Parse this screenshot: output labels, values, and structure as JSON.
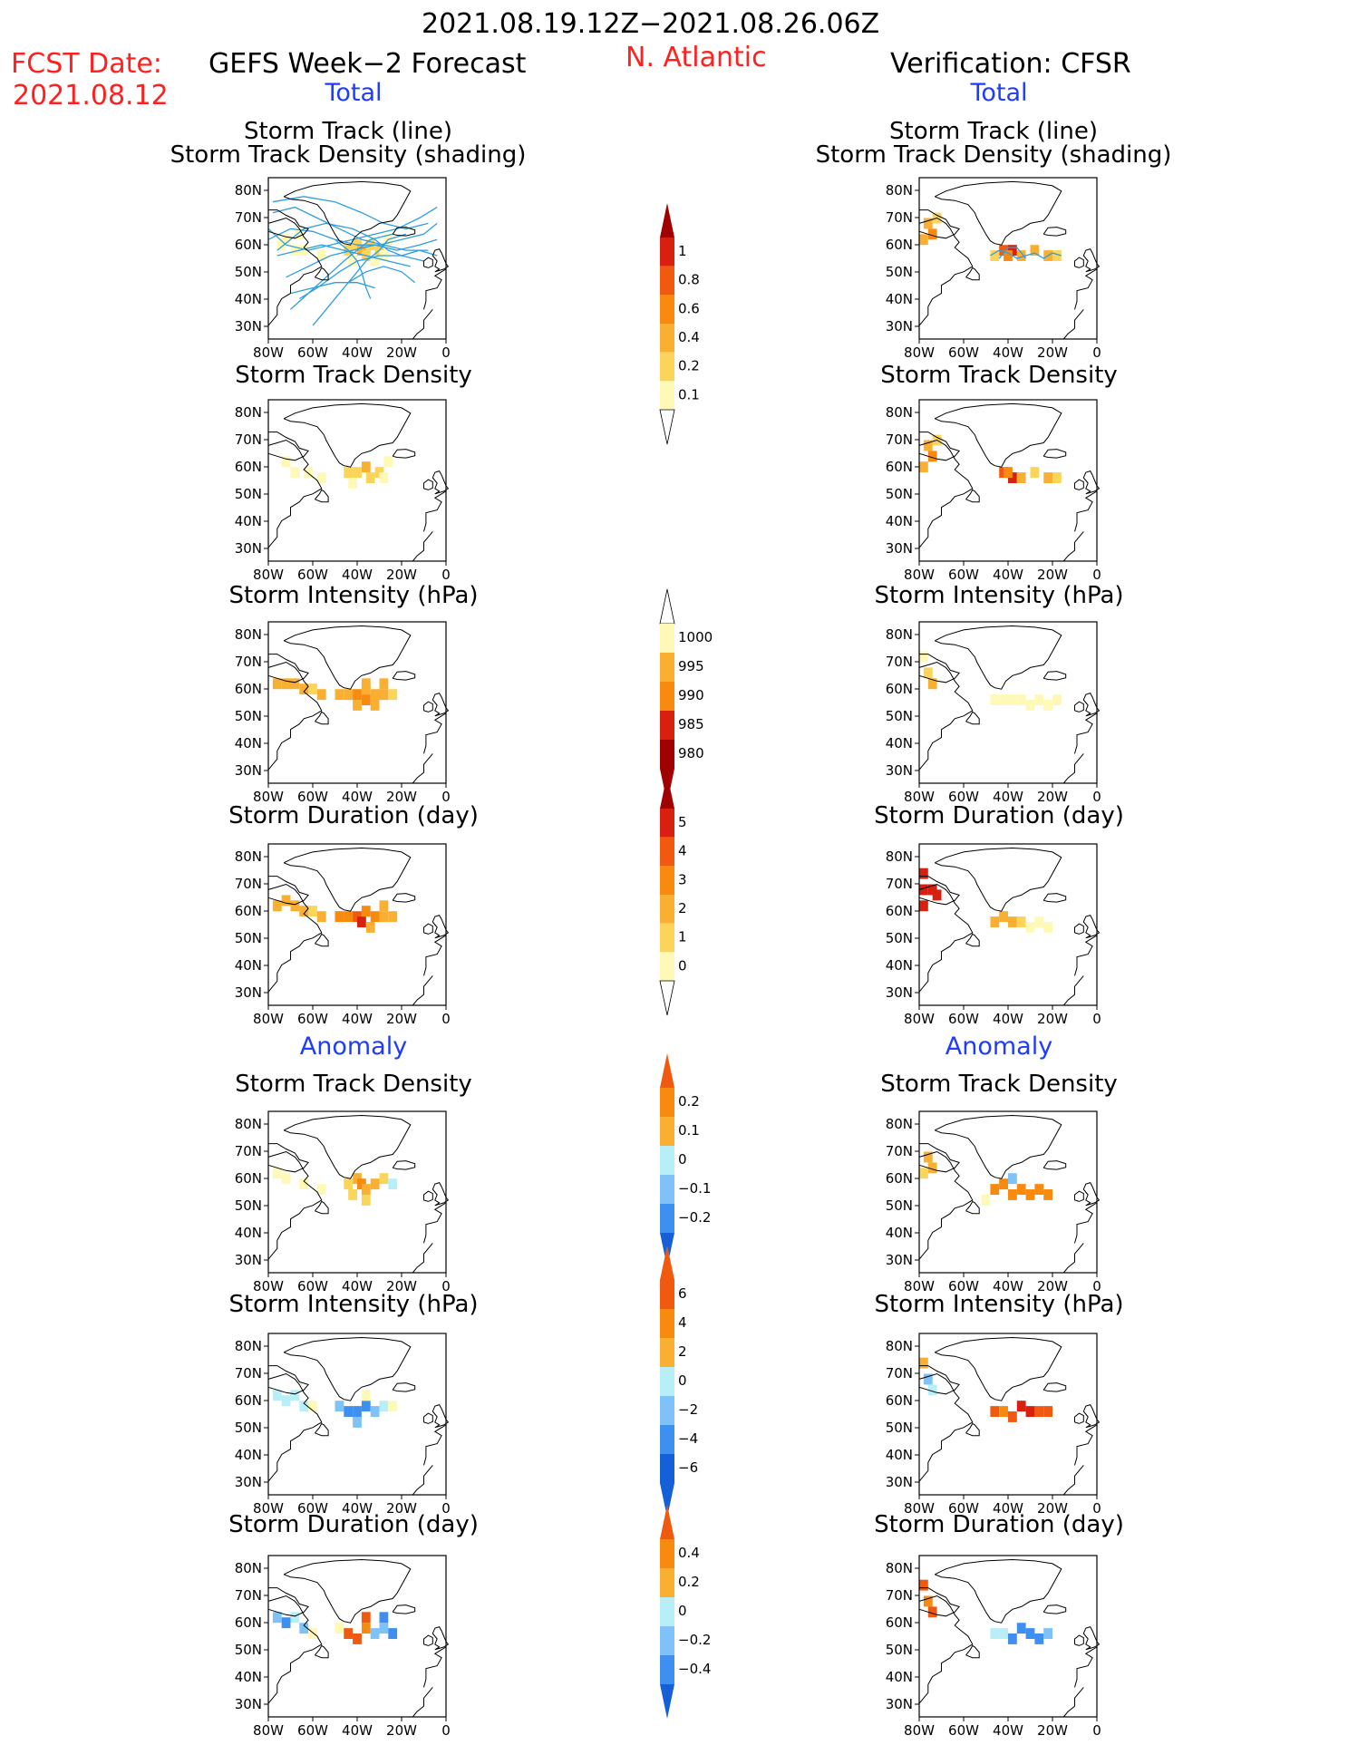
{
  "header": {
    "period": "2021.08.19.12Z−2021.08.26.06Z",
    "fcst_label": "FCST Date:",
    "fcst_date": "2021.08.12",
    "model": "GEFS Week−2 Forecast",
    "region": "N. Atlantic",
    "verification": "Verification: CFSR",
    "total_left": "Total",
    "total_right": "Total",
    "anomaly_left": "Anomaly",
    "anomaly_right": "Anomaly"
  },
  "axes": {
    "lat_ticks": [
      "80N",
      "70N",
      "60N",
      "50N",
      "40N",
      "30N"
    ],
    "lon_ticks": [
      "80W",
      "60W",
      "40W",
      "20W",
      "0"
    ]
  },
  "colors": {
    "pos": [
      "#fff9b8",
      "#fbd45a",
      "#f9b032",
      "#f88a10",
      "#f05a10",
      "#d82010",
      "#a00000"
    ],
    "neg": [
      "#b8eef8",
      "#7ec2f8",
      "#3f8ff0",
      "#1560d8"
    ],
    "track": "#2f9ee0"
  },
  "chart_data": [
    {
      "type": "heatmap",
      "column": "forecast",
      "title": "Storm Track (line)\nStorm Track Density (shading)",
      "title_lines": [
        "Storm Track (line)",
        "Storm Track Density (shading)"
      ],
      "field": "total_density",
      "cells": [
        [
          -72,
          62,
          1
        ],
        [
          -68,
          58,
          1
        ],
        [
          -74,
          60,
          1
        ],
        [
          -64,
          58,
          1
        ],
        [
          -66,
          64,
          1
        ],
        [
          -56,
          56,
          1
        ],
        [
          -44,
          58,
          2
        ],
        [
          -40,
          60,
          2
        ],
        [
          -38,
          58,
          3
        ],
        [
          -36,
          56,
          2
        ],
        [
          -34,
          60,
          2
        ],
        [
          -30,
          58,
          2
        ],
        [
          -32,
          54,
          1
        ],
        [
          -28,
          56,
          1
        ],
        [
          -42,
          54,
          1
        ],
        [
          -26,
          62,
          1
        ]
      ],
      "tracks": true
    },
    {
      "type": "heatmap",
      "column": "verification",
      "title": "Storm Track (line)\nStorm Track Density (shading)",
      "title_lines": [
        "Storm Track (line)",
        "Storm Track Density (shading)"
      ],
      "field": "total_density",
      "cells": [
        [
          -76,
          68,
          3
        ],
        [
          -74,
          64,
          4
        ],
        [
          -78,
          62,
          3
        ],
        [
          -72,
          70,
          2
        ],
        [
          -42,
          58,
          5
        ],
        [
          -38,
          58,
          6
        ],
        [
          -40,
          56,
          4
        ],
        [
          -34,
          56,
          3
        ],
        [
          -28,
          58,
          3
        ],
        [
          -22,
          56,
          3
        ],
        [
          -18,
          56,
          2
        ],
        [
          -46,
          56,
          2
        ]
      ],
      "tracks": true
    },
    {
      "type": "heatmap",
      "column": "forecast",
      "title": "Storm Track Density",
      "title_lines": [
        "Storm Track Density"
      ],
      "field": "total_density",
      "cells": [
        [
          -72,
          62,
          1
        ],
        [
          -68,
          58,
          1
        ],
        [
          -62,
          58,
          1
        ],
        [
          -56,
          56,
          1
        ],
        [
          -44,
          58,
          2
        ],
        [
          -40,
          58,
          2
        ],
        [
          -36,
          60,
          3
        ],
        [
          -34,
          56,
          2
        ],
        [
          -30,
          58,
          2
        ],
        [
          -28,
          56,
          1
        ],
        [
          -42,
          54,
          1
        ],
        [
          -26,
          62,
          1
        ]
      ]
    },
    {
      "type": "heatmap",
      "column": "verification",
      "title": "Storm Track Density",
      "title_lines": [
        "Storm Track Density"
      ],
      "field": "total_density",
      "cells": [
        [
          -76,
          68,
          3
        ],
        [
          -74,
          64,
          4
        ],
        [
          -78,
          60,
          3
        ],
        [
          -72,
          70,
          2
        ],
        [
          -42,
          58,
          5
        ],
        [
          -38,
          56,
          6
        ],
        [
          -40,
          58,
          4
        ],
        [
          -34,
          56,
          3
        ],
        [
          -28,
          58,
          2
        ],
        [
          -22,
          56,
          3
        ],
        [
          -18,
          56,
          2
        ]
      ]
    },
    {
      "type": "heatmap",
      "column": "forecast",
      "title": "Storm Intensity (hPa)",
      "title_lines": [
        "Storm Intensity (hPa)"
      ],
      "field": "total_intensity",
      "cells": [
        [
          -76,
          62,
          3
        ],
        [
          -72,
          62,
          3
        ],
        [
          -68,
          62,
          3
        ],
        [
          -64,
          60,
          3
        ],
        [
          -60,
          60,
          2
        ],
        [
          -56,
          58,
          3
        ],
        [
          -48,
          58,
          3
        ],
        [
          -44,
          58,
          3
        ],
        [
          -40,
          58,
          4
        ],
        [
          -36,
          60,
          3
        ],
        [
          -32,
          58,
          3
        ],
        [
          -28,
          58,
          3
        ],
        [
          -24,
          58,
          2
        ],
        [
          -36,
          56,
          4
        ],
        [
          -40,
          54,
          3
        ],
        [
          -32,
          54,
          3
        ],
        [
          -36,
          62,
          3
        ],
        [
          -28,
          62,
          3
        ]
      ]
    },
    {
      "type": "heatmap",
      "column": "verification",
      "title": "Storm Intensity (hPa)",
      "title_lines": [
        "Storm Intensity (hPa)"
      ],
      "field": "total_intensity",
      "cells": [
        [
          -78,
          72,
          1
        ],
        [
          -76,
          66,
          2
        ],
        [
          -74,
          62,
          3
        ],
        [
          -46,
          56,
          1
        ],
        [
          -42,
          56,
          1
        ],
        [
          -38,
          56,
          1
        ],
        [
          -34,
          56,
          1
        ],
        [
          -30,
          54,
          1
        ],
        [
          -26,
          56,
          1
        ],
        [
          -22,
          54,
          1
        ],
        [
          -18,
          56,
          1
        ]
      ]
    },
    {
      "type": "heatmap",
      "column": "forecast",
      "title": "Storm Duration (day)",
      "title_lines": [
        "Storm Duration (day)"
      ],
      "field": "total_duration",
      "cells": [
        [
          -76,
          62,
          3
        ],
        [
          -72,
          64,
          3
        ],
        [
          -68,
          62,
          3
        ],
        [
          -64,
          60,
          3
        ],
        [
          -60,
          60,
          2
        ],
        [
          -56,
          58,
          3
        ],
        [
          -48,
          58,
          4
        ],
        [
          -44,
          58,
          4
        ],
        [
          -40,
          58,
          5
        ],
        [
          -38,
          56,
          6
        ],
        [
          -36,
          60,
          4
        ],
        [
          -32,
          58,
          4
        ],
        [
          -28,
          58,
          3
        ],
        [
          -24,
          58,
          3
        ],
        [
          -34,
          54,
          3
        ],
        [
          -28,
          62,
          3
        ]
      ]
    },
    {
      "type": "heatmap",
      "column": "verification",
      "title": "Storm Duration (day)",
      "title_lines": [
        "Storm Duration (day)"
      ],
      "field": "total_duration",
      "cells": [
        [
          -78,
          74,
          6
        ],
        [
          -78,
          68,
          6
        ],
        [
          -74,
          68,
          6
        ],
        [
          -78,
          62,
          6
        ],
        [
          -72,
          66,
          6
        ],
        [
          -46,
          56,
          3
        ],
        [
          -42,
          58,
          3
        ],
        [
          -38,
          56,
          3
        ],
        [
          -34,
          56,
          2
        ],
        [
          -30,
          54,
          1
        ],
        [
          -26,
          56,
          1
        ],
        [
          -22,
          54,
          1
        ]
      ]
    },
    {
      "type": "heatmap",
      "column": "forecast",
      "title": "Storm Track Density",
      "title_lines": [
        "Storm Track Density"
      ],
      "field": "anom_density",
      "cells": [
        [
          -76,
          62,
          1
        ],
        [
          -72,
          60,
          1
        ],
        [
          -64,
          58,
          1
        ],
        [
          -56,
          56,
          1
        ],
        [
          -44,
          58,
          2
        ],
        [
          -40,
          60,
          3
        ],
        [
          -38,
          58,
          4
        ],
        [
          -36,
          56,
          3
        ],
        [
          -32,
          58,
          3
        ],
        [
          -28,
          60,
          2
        ],
        [
          -24,
          58,
          -1
        ],
        [
          -42,
          54,
          2
        ],
        [
          -36,
          52,
          2
        ]
      ]
    },
    {
      "type": "heatmap",
      "column": "verification",
      "title": "Storm Track Density",
      "title_lines": [
        "Storm Track Density"
      ],
      "field": "anom_density",
      "cells": [
        [
          -76,
          68,
          3
        ],
        [
          -74,
          64,
          3
        ],
        [
          -78,
          62,
          2
        ],
        [
          -46,
          56,
          4
        ],
        [
          -42,
          58,
          4
        ],
        [
          -38,
          54,
          4
        ],
        [
          -34,
          56,
          4
        ],
        [
          -30,
          54,
          4
        ],
        [
          -26,
          56,
          4
        ],
        [
          -22,
          54,
          4
        ],
        [
          -38,
          60,
          -2
        ],
        [
          -50,
          52,
          1
        ]
      ]
    },
    {
      "type": "heatmap",
      "column": "forecast",
      "title": "Storm Intensity (hPa)",
      "title_lines": [
        "Storm Intensity (hPa)"
      ],
      "field": "anom_intensity",
      "cells": [
        [
          -76,
          62,
          -1
        ],
        [
          -72,
          60,
          -1
        ],
        [
          -68,
          62,
          -1
        ],
        [
          -64,
          58,
          -1
        ],
        [
          -60,
          58,
          1
        ],
        [
          -48,
          58,
          -2
        ],
        [
          -44,
          56,
          -3
        ],
        [
          -40,
          56,
          -3
        ],
        [
          -36,
          58,
          -3
        ],
        [
          -32,
          56,
          -2
        ],
        [
          -28,
          58,
          -1
        ],
        [
          -24,
          58,
          1
        ],
        [
          -36,
          62,
          1
        ],
        [
          -40,
          52,
          -2
        ]
      ]
    },
    {
      "type": "heatmap",
      "column": "verification",
      "title": "Storm Intensity (hPa)",
      "title_lines": [
        "Storm Intensity (hPa)"
      ],
      "field": "anom_intensity",
      "cells": [
        [
          -78,
          74,
          3
        ],
        [
          -76,
          68,
          -2
        ],
        [
          -74,
          64,
          -1
        ],
        [
          -46,
          56,
          5
        ],
        [
          -42,
          56,
          4
        ],
        [
          -38,
          54,
          5
        ],
        [
          -34,
          58,
          6
        ],
        [
          -30,
          56,
          6
        ],
        [
          -26,
          56,
          5
        ],
        [
          -22,
          56,
          5
        ]
      ]
    },
    {
      "type": "heatmap",
      "column": "forecast",
      "title": "Storm Duration (day)",
      "title_lines": [
        "Storm Duration (day)"
      ],
      "field": "anom_duration",
      "cells": [
        [
          -76,
          62,
          -2
        ],
        [
          -72,
          60,
          -3
        ],
        [
          -68,
          62,
          -1
        ],
        [
          -64,
          58,
          -2
        ],
        [
          -60,
          56,
          1
        ],
        [
          -48,
          58,
          1
        ],
        [
          -44,
          56,
          5
        ],
        [
          -40,
          54,
          5
        ],
        [
          -36,
          58,
          4
        ],
        [
          -32,
          56,
          -2
        ],
        [
          -28,
          58,
          -2
        ],
        [
          -24,
          56,
          -3
        ],
        [
          -36,
          62,
          5
        ],
        [
          -28,
          62,
          -3
        ]
      ]
    },
    {
      "type": "heatmap",
      "column": "verification",
      "title": "Storm Duration (day)",
      "title_lines": [
        "Storm Duration (day)"
      ],
      "field": "anom_duration",
      "cells": [
        [
          -78,
          74,
          5
        ],
        [
          -76,
          68,
          4
        ],
        [
          -74,
          64,
          5
        ],
        [
          -46,
          56,
          -1
        ],
        [
          -42,
          56,
          -1
        ],
        [
          -38,
          54,
          -3
        ],
        [
          -34,
          58,
          -3
        ],
        [
          -30,
          56,
          -3
        ],
        [
          -26,
          54,
          -3
        ],
        [
          -22,
          56,
          -2
        ]
      ]
    }
  ],
  "colorbars": [
    {
      "field": "total_density",
      "labels": [
        "1",
        "0.8",
        "0.6",
        "0.4",
        "0.2",
        "0.1"
      ]
    },
    {
      "field": "total_intensity",
      "labels": [
        "1000",
        "995",
        "990",
        "985",
        "980"
      ]
    },
    {
      "field": "total_duration",
      "labels": [
        "5",
        "4",
        "3",
        "2",
        "1",
        "0"
      ]
    },
    {
      "field": "anom_density",
      "labels": [
        "0.2",
        "0.1",
        "0",
        "−0.1",
        "−0.2"
      ]
    },
    {
      "field": "anom_intensity",
      "labels": [
        "6",
        "4",
        "2",
        "0",
        "−2",
        "−4",
        "−6"
      ]
    },
    {
      "field": "anom_duration",
      "labels": [
        "0.4",
        "0.2",
        "0",
        "−0.2",
        "−0.4"
      ]
    }
  ]
}
